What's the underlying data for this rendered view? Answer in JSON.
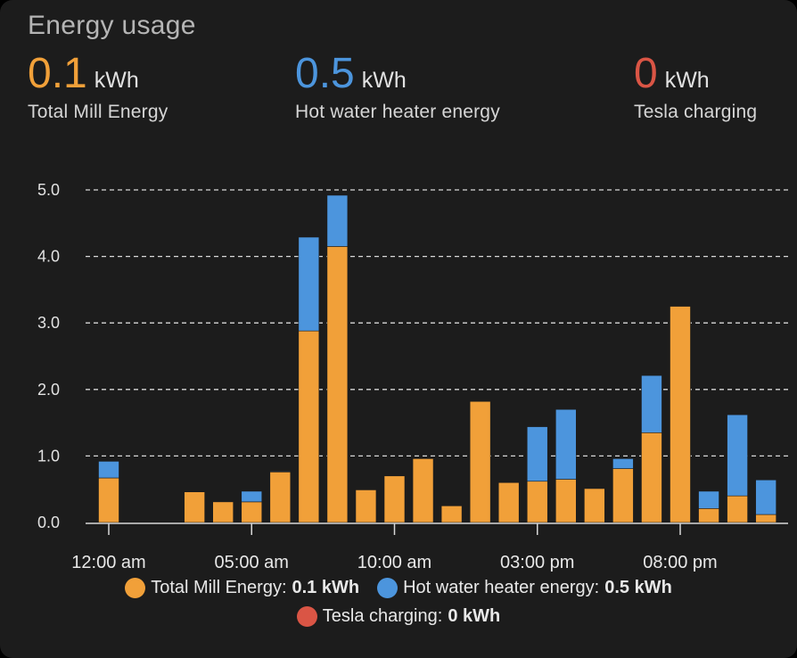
{
  "card": {
    "title": "Energy usage"
  },
  "stats": [
    {
      "value": "0.1",
      "unit": "kWh",
      "label": "Total Mill Energy",
      "color": "#f1a039"
    },
    {
      "value": "0.5",
      "unit": "kWh",
      "label": "Hot water heater energy",
      "color": "#4c95dd"
    },
    {
      "value": "0",
      "unit": "kWh",
      "label": "Tesla charging",
      "color": "#da5545"
    }
  ],
  "legend": [
    {
      "name": "Total Mill Energy:",
      "value": "0.1 kWh",
      "color": "#f1a039"
    },
    {
      "name": "Hot water heater energy:",
      "value": "0.5 kWh",
      "color": "#4c95dd"
    },
    {
      "name": "Tesla charging:",
      "value": "0 kWh",
      "color": "#da5545"
    }
  ],
  "chart_data": {
    "type": "bar",
    "stacked": true,
    "categories": [
      "00",
      "01",
      "02",
      "03",
      "04",
      "05",
      "06",
      "07",
      "08",
      "09",
      "10",
      "11",
      "12",
      "13",
      "14",
      "15",
      "16",
      "17",
      "18",
      "19",
      "20",
      "21",
      "22",
      "23"
    ],
    "series": [
      {
        "name": "Total Mill Energy",
        "color": "#f1a039",
        "values": [
          0.67,
          0,
          0,
          0.46,
          0.31,
          0.31,
          0.76,
          2.88,
          4.15,
          0.49,
          0.7,
          0.96,
          0.25,
          1.82,
          0.6,
          0.62,
          0.65,
          0.51,
          0.81,
          1.35,
          3.25,
          0.21,
          0.4,
          0.12
        ]
      },
      {
        "name": "Hot water heater energy",
        "color": "#4c95dd",
        "values": [
          0.25,
          0,
          0,
          0,
          0,
          0.16,
          0.01,
          1.41,
          0.77,
          0,
          0,
          0,
          0,
          0,
          0,
          0.82,
          1.05,
          0,
          0.15,
          0.86,
          0,
          0.26,
          1.22,
          0.52
        ]
      },
      {
        "name": "Tesla charging",
        "color": "#da5545",
        "values": [
          0,
          0,
          0,
          0,
          0,
          0,
          0,
          0,
          0,
          0,
          0,
          0,
          0,
          0,
          0,
          0,
          0,
          0,
          0,
          0,
          0,
          0,
          0,
          0
        ]
      }
    ],
    "y_ticks": [
      "0.0",
      "1.0",
      "2.0",
      "3.0",
      "4.0",
      "5.0"
    ],
    "x_ticks": [
      {
        "label": "12:00 am",
        "hour": 0
      },
      {
        "label": "05:00 am",
        "hour": 5
      },
      {
        "label": "10:00 am",
        "hour": 10
      },
      {
        "label": "03:00 pm",
        "hour": 15
      },
      {
        "label": "08:00 pm",
        "hour": 20
      }
    ],
    "ylim": [
      0,
      5
    ],
    "grid": true,
    "legend_position": "bottom"
  }
}
